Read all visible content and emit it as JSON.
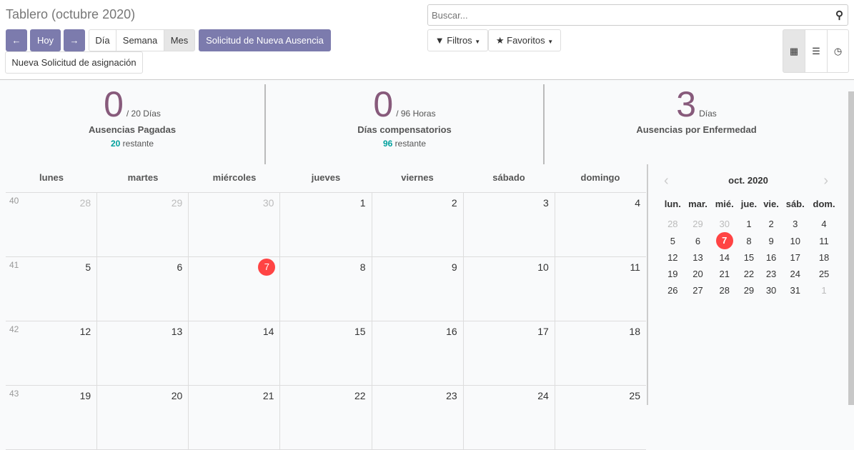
{
  "header": {
    "title": "Tablero (octubre 2020)",
    "prev": "←",
    "today": "Hoy",
    "next": "→",
    "day": "Día",
    "week": "Semana",
    "month": "Mes",
    "new_leave": "Solicitud de Nueva Ausencia",
    "new_alloc": "Nueva Solicitud de asignación"
  },
  "search": {
    "placeholder": "Buscar...",
    "filters": "Filtros",
    "favorites": "Favoritos"
  },
  "views": {
    "active": "calendar",
    "items": [
      "calendar-icon",
      "list-icon",
      "clock-icon"
    ]
  },
  "stats": [
    {
      "value": "0",
      "unit": "/ 20 Días",
      "label": "Ausencias Pagadas",
      "remaining": "20",
      "remaining_label": "restante"
    },
    {
      "value": "0",
      "unit": "/ 96 Horas",
      "label": "Días compensatorios",
      "remaining": "96",
      "remaining_label": "restante"
    },
    {
      "value": "3",
      "unit": "Días",
      "label": "Ausencias por Enfermedad"
    }
  ],
  "calendar": {
    "weekdays": [
      "lunes",
      "martes",
      "miércoles",
      "jueves",
      "viernes",
      "sábado",
      "domingo"
    ],
    "today": "7",
    "weeks": [
      {
        "num": "40",
        "days": [
          {
            "d": "28",
            "o": true
          },
          {
            "d": "29",
            "o": true
          },
          {
            "d": "30",
            "o": true
          },
          {
            "d": "1"
          },
          {
            "d": "2"
          },
          {
            "d": "3"
          },
          {
            "d": "4"
          }
        ]
      },
      {
        "num": "41",
        "days": [
          {
            "d": "5"
          },
          {
            "d": "6"
          },
          {
            "d": "7"
          },
          {
            "d": "8"
          },
          {
            "d": "9"
          },
          {
            "d": "10"
          },
          {
            "d": "11"
          }
        ]
      },
      {
        "num": "42",
        "days": [
          {
            "d": "12"
          },
          {
            "d": "13"
          },
          {
            "d": "14"
          },
          {
            "d": "15"
          },
          {
            "d": "16"
          },
          {
            "d": "17"
          },
          {
            "d": "18"
          }
        ]
      },
      {
        "num": "43",
        "days": [
          {
            "d": "19"
          },
          {
            "d": "20"
          },
          {
            "d": "21"
          },
          {
            "d": "22"
          },
          {
            "d": "23"
          },
          {
            "d": "24"
          },
          {
            "d": "25"
          }
        ]
      }
    ]
  },
  "mini": {
    "title": "oct. 2020",
    "weekdays": [
      "lun.",
      "mar.",
      "mié.",
      "jue.",
      "vie.",
      "sáb.",
      "dom."
    ],
    "weeks": [
      [
        {
          "d": "28",
          "o": true
        },
        {
          "d": "29",
          "o": true
        },
        {
          "d": "30",
          "o": true
        },
        {
          "d": "1"
        },
        {
          "d": "2"
        },
        {
          "d": "3"
        },
        {
          "d": "4"
        }
      ],
      [
        {
          "d": "5"
        },
        {
          "d": "6"
        },
        {
          "d": "7"
        },
        {
          "d": "8"
        },
        {
          "d": "9"
        },
        {
          "d": "10"
        },
        {
          "d": "11"
        }
      ],
      [
        {
          "d": "12"
        },
        {
          "d": "13"
        },
        {
          "d": "14"
        },
        {
          "d": "15"
        },
        {
          "d": "16"
        },
        {
          "d": "17"
        },
        {
          "d": "18"
        }
      ],
      [
        {
          "d": "19"
        },
        {
          "d": "20"
        },
        {
          "d": "21"
        },
        {
          "d": "22"
        },
        {
          "d": "23"
        },
        {
          "d": "24"
        },
        {
          "d": "25"
        }
      ],
      [
        {
          "d": "26"
        },
        {
          "d": "27"
        },
        {
          "d": "28"
        },
        {
          "d": "29"
        },
        {
          "d": "30"
        },
        {
          "d": "31"
        },
        {
          "d": "1",
          "o": true
        }
      ]
    ]
  },
  "colors": {
    "primary": "#7c7bad",
    "today": "#ff4444",
    "stat": "#875a7b",
    "remaining": "#00a09d"
  }
}
